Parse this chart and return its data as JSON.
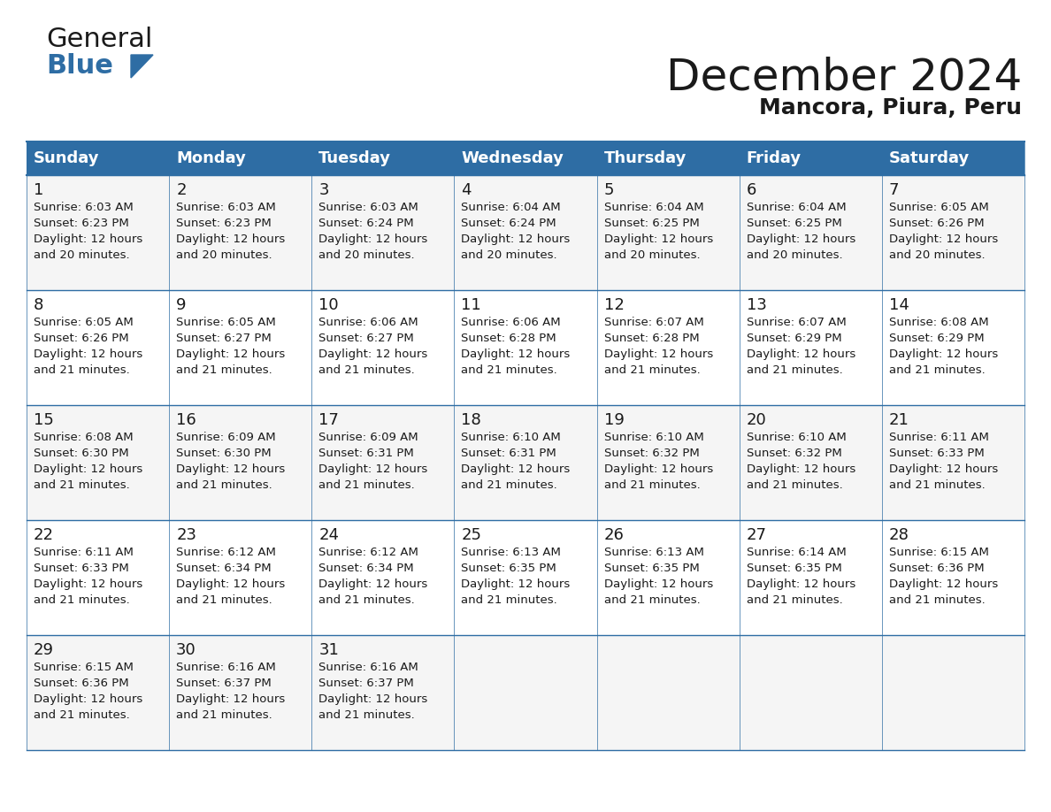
{
  "title": "December 2024",
  "subtitle": "Mancora, Piura, Peru",
  "header_color": "#2E6DA4",
  "header_text_color": "#FFFFFF",
  "cell_bg_color": "#F2F2F2",
  "cell_bg_alt": "#FFFFFF",
  "border_color": "#2E6DA4",
  "days_of_week": [
    "Sunday",
    "Monday",
    "Tuesday",
    "Wednesday",
    "Thursday",
    "Friday",
    "Saturday"
  ],
  "weeks": [
    [
      {
        "day": 1,
        "sunrise": "6:03 AM",
        "sunset": "6:23 PM",
        "daylight": "12 hours and 20 minutes."
      },
      {
        "day": 2,
        "sunrise": "6:03 AM",
        "sunset": "6:23 PM",
        "daylight": "12 hours and 20 minutes."
      },
      {
        "day": 3,
        "sunrise": "6:03 AM",
        "sunset": "6:24 PM",
        "daylight": "12 hours and 20 minutes."
      },
      {
        "day": 4,
        "sunrise": "6:04 AM",
        "sunset": "6:24 PM",
        "daylight": "12 hours and 20 minutes."
      },
      {
        "day": 5,
        "sunrise": "6:04 AM",
        "sunset": "6:25 PM",
        "daylight": "12 hours and 20 minutes."
      },
      {
        "day": 6,
        "sunrise": "6:04 AM",
        "sunset": "6:25 PM",
        "daylight": "12 hours and 20 minutes."
      },
      {
        "day": 7,
        "sunrise": "6:05 AM",
        "sunset": "6:26 PM",
        "daylight": "12 hours and 20 minutes."
      }
    ],
    [
      {
        "day": 8,
        "sunrise": "6:05 AM",
        "sunset": "6:26 PM",
        "daylight": "12 hours and 21 minutes."
      },
      {
        "day": 9,
        "sunrise": "6:05 AM",
        "sunset": "6:27 PM",
        "daylight": "12 hours and 21 minutes."
      },
      {
        "day": 10,
        "sunrise": "6:06 AM",
        "sunset": "6:27 PM",
        "daylight": "12 hours and 21 minutes."
      },
      {
        "day": 11,
        "sunrise": "6:06 AM",
        "sunset": "6:28 PM",
        "daylight": "12 hours and 21 minutes."
      },
      {
        "day": 12,
        "sunrise": "6:07 AM",
        "sunset": "6:28 PM",
        "daylight": "12 hours and 21 minutes."
      },
      {
        "day": 13,
        "sunrise": "6:07 AM",
        "sunset": "6:29 PM",
        "daylight": "12 hours and 21 minutes."
      },
      {
        "day": 14,
        "sunrise": "6:08 AM",
        "sunset": "6:29 PM",
        "daylight": "12 hours and 21 minutes."
      }
    ],
    [
      {
        "day": 15,
        "sunrise": "6:08 AM",
        "sunset": "6:30 PM",
        "daylight": "12 hours and 21 minutes."
      },
      {
        "day": 16,
        "sunrise": "6:09 AM",
        "sunset": "6:30 PM",
        "daylight": "12 hours and 21 minutes."
      },
      {
        "day": 17,
        "sunrise": "6:09 AM",
        "sunset": "6:31 PM",
        "daylight": "12 hours and 21 minutes."
      },
      {
        "day": 18,
        "sunrise": "6:10 AM",
        "sunset": "6:31 PM",
        "daylight": "12 hours and 21 minutes."
      },
      {
        "day": 19,
        "sunrise": "6:10 AM",
        "sunset": "6:32 PM",
        "daylight": "12 hours and 21 minutes."
      },
      {
        "day": 20,
        "sunrise": "6:10 AM",
        "sunset": "6:32 PM",
        "daylight": "12 hours and 21 minutes."
      },
      {
        "day": 21,
        "sunrise": "6:11 AM",
        "sunset": "6:33 PM",
        "daylight": "12 hours and 21 minutes."
      }
    ],
    [
      {
        "day": 22,
        "sunrise": "6:11 AM",
        "sunset": "6:33 PM",
        "daylight": "12 hours and 21 minutes."
      },
      {
        "day": 23,
        "sunrise": "6:12 AM",
        "sunset": "6:34 PM",
        "daylight": "12 hours and 21 minutes."
      },
      {
        "day": 24,
        "sunrise": "6:12 AM",
        "sunset": "6:34 PM",
        "daylight": "12 hours and 21 minutes."
      },
      {
        "day": 25,
        "sunrise": "6:13 AM",
        "sunset": "6:35 PM",
        "daylight": "12 hours and 21 minutes."
      },
      {
        "day": 26,
        "sunrise": "6:13 AM",
        "sunset": "6:35 PM",
        "daylight": "12 hours and 21 minutes."
      },
      {
        "day": 27,
        "sunrise": "6:14 AM",
        "sunset": "6:35 PM",
        "daylight": "12 hours and 21 minutes."
      },
      {
        "day": 28,
        "sunrise": "6:15 AM",
        "sunset": "6:36 PM",
        "daylight": "12 hours and 21 minutes."
      }
    ],
    [
      {
        "day": 29,
        "sunrise": "6:15 AM",
        "sunset": "6:36 PM",
        "daylight": "12 hours and 21 minutes."
      },
      {
        "day": 30,
        "sunrise": "6:16 AM",
        "sunset": "6:37 PM",
        "daylight": "12 hours and 21 minutes."
      },
      {
        "day": 31,
        "sunrise": "6:16 AM",
        "sunset": "6:37 PM",
        "daylight": "12 hours and 21 minutes."
      },
      null,
      null,
      null,
      null
    ]
  ],
  "logo_text1": "General",
  "logo_text2": "Blue",
  "logo_color1": "#1a1a1a",
  "logo_color2": "#2E6DA4",
  "logo_triangle_color": "#2E6DA4"
}
